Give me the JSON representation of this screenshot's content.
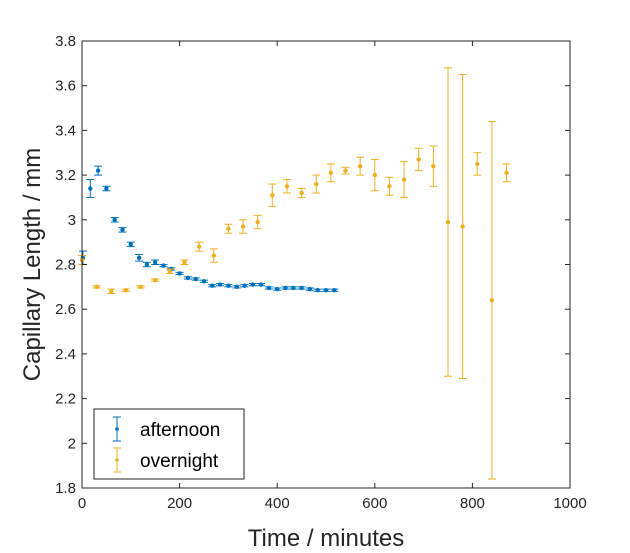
{
  "chart_data": {
    "type": "scatter",
    "xlabel": "Time / minutes",
    "ylabel": "Capillary Length / mm",
    "xlim": [
      0,
      1000
    ],
    "ylim": [
      1.8,
      3.8
    ],
    "xticks": [
      0,
      200,
      400,
      600,
      800,
      1000
    ],
    "yticks": [
      1.8,
      2,
      2.2,
      2.4,
      2.6,
      2.8,
      3,
      3.2,
      3.4,
      3.6,
      3.8
    ],
    "grid": false,
    "legend_position": "bottom-left",
    "series": [
      {
        "name": "afternoon",
        "color": "#0072BD",
        "errorbars": true,
        "points": [
          {
            "x": 2,
            "y": 2.83,
            "err": 0.03
          },
          {
            "x": 17,
            "y": 3.14,
            "err": 0.04
          },
          {
            "x": 33,
            "y": 3.22,
            "err": 0.02
          },
          {
            "x": 50,
            "y": 3.14,
            "err": 0.01
          },
          {
            "x": 67,
            "y": 3.0,
            "err": 0.01
          },
          {
            "x": 83,
            "y": 2.955,
            "err": 0.01
          },
          {
            "x": 100,
            "y": 2.89,
            "err": 0.01
          },
          {
            "x": 117,
            "y": 2.83,
            "err": 0.015
          },
          {
            "x": 133,
            "y": 2.8,
            "err": 0.01
          },
          {
            "x": 150,
            "y": 2.81,
            "err": 0.01
          },
          {
            "x": 167,
            "y": 2.795,
            "err": 0.005
          },
          {
            "x": 183,
            "y": 2.78,
            "err": 0.005
          },
          {
            "x": 200,
            "y": 2.76,
            "err": 0.005
          },
          {
            "x": 217,
            "y": 2.74,
            "err": 0.005
          },
          {
            "x": 233,
            "y": 2.735,
            "err": 0.005
          },
          {
            "x": 250,
            "y": 2.725,
            "err": 0.005
          },
          {
            "x": 267,
            "y": 2.705,
            "err": 0.005
          },
          {
            "x": 283,
            "y": 2.71,
            "err": 0.005
          },
          {
            "x": 300,
            "y": 2.705,
            "err": 0.005
          },
          {
            "x": 317,
            "y": 2.7,
            "err": 0.005
          },
          {
            "x": 333,
            "y": 2.705,
            "err": 0.005
          },
          {
            "x": 350,
            "y": 2.71,
            "err": 0.005
          },
          {
            "x": 367,
            "y": 2.71,
            "err": 0.005
          },
          {
            "x": 383,
            "y": 2.695,
            "err": 0.005
          },
          {
            "x": 400,
            "y": 2.69,
            "err": 0.005
          },
          {
            "x": 417,
            "y": 2.695,
            "err": 0.005
          },
          {
            "x": 433,
            "y": 2.695,
            "err": 0.005
          },
          {
            "x": 450,
            "y": 2.695,
            "err": 0.005
          },
          {
            "x": 467,
            "y": 2.69,
            "err": 0.005
          },
          {
            "x": 483,
            "y": 2.685,
            "err": 0.005
          },
          {
            "x": 500,
            "y": 2.685,
            "err": 0.005
          },
          {
            "x": 517,
            "y": 2.685,
            "err": 0.005
          }
        ]
      },
      {
        "name": "overnight",
        "color": "#EDB120",
        "errorbars": true,
        "points": [
          {
            "x": 0,
            "y": 2.82,
            "err": 0.02
          },
          {
            "x": 30,
            "y": 2.7,
            "err": 0.005
          },
          {
            "x": 60,
            "y": 2.68,
            "err": 0.01
          },
          {
            "x": 90,
            "y": 2.685,
            "err": 0.005
          },
          {
            "x": 120,
            "y": 2.7,
            "err": 0.005
          },
          {
            "x": 150,
            "y": 2.73,
            "err": 0.005
          },
          {
            "x": 180,
            "y": 2.77,
            "err": 0.01
          },
          {
            "x": 210,
            "y": 2.81,
            "err": 0.01
          },
          {
            "x": 240,
            "y": 2.88,
            "err": 0.02
          },
          {
            "x": 270,
            "y": 2.84,
            "err": 0.03
          },
          {
            "x": 300,
            "y": 2.96,
            "err": 0.02
          },
          {
            "x": 330,
            "y": 2.97,
            "err": 0.03
          },
          {
            "x": 360,
            "y": 2.99,
            "err": 0.03
          },
          {
            "x": 390,
            "y": 3.11,
            "err": 0.05
          },
          {
            "x": 420,
            "y": 3.15,
            "err": 0.03
          },
          {
            "x": 450,
            "y": 3.12,
            "err": 0.02
          },
          {
            "x": 480,
            "y": 3.16,
            "err": 0.04
          },
          {
            "x": 510,
            "y": 3.21,
            "err": 0.04
          },
          {
            "x": 540,
            "y": 3.22,
            "err": 0.015
          },
          {
            "x": 570,
            "y": 3.24,
            "err": 0.04
          },
          {
            "x": 600,
            "y": 3.2,
            "err": 0.07
          },
          {
            "x": 630,
            "y": 3.15,
            "err": 0.04
          },
          {
            "x": 660,
            "y": 3.18,
            "err": 0.08
          },
          {
            "x": 690,
            "y": 3.27,
            "err": 0.05
          },
          {
            "x": 720,
            "y": 3.24,
            "err": 0.09
          },
          {
            "x": 750,
            "y": 2.99,
            "err": 0.69
          },
          {
            "x": 780,
            "y": 2.97,
            "err": 0.68
          },
          {
            "x": 810,
            "y": 3.25,
            "err": 0.05
          },
          {
            "x": 840,
            "y": 2.64,
            "err": 0.8
          },
          {
            "x": 870,
            "y": 3.21,
            "err": 0.04
          }
        ]
      }
    ]
  }
}
